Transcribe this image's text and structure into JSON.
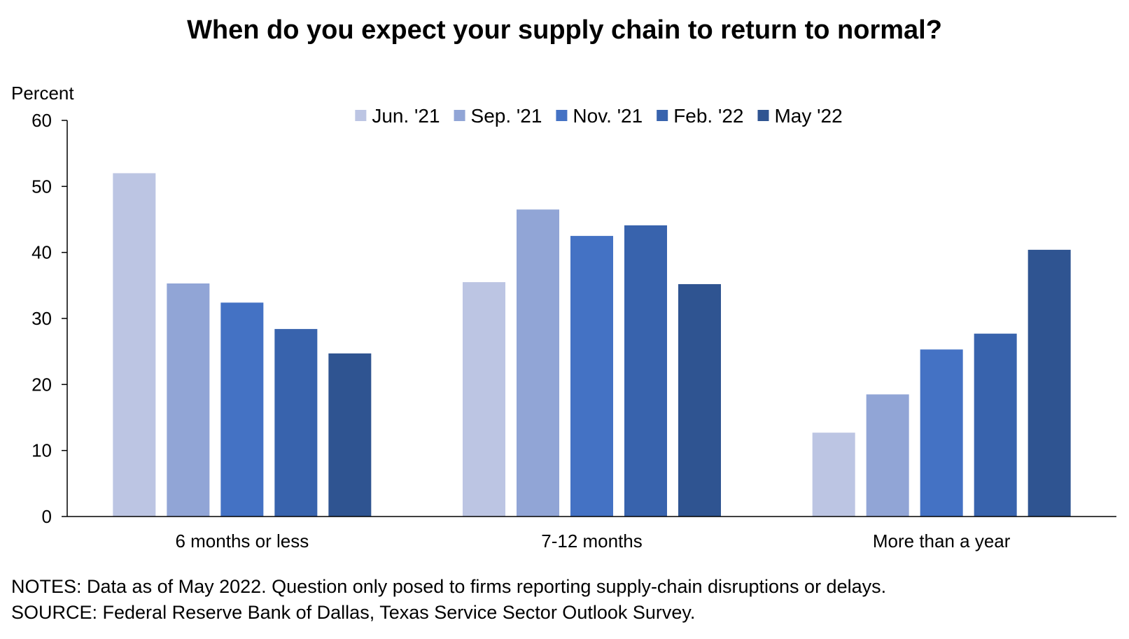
{
  "chart_data": {
    "type": "bar",
    "title": "When do you expect your supply chain to return to normal?",
    "ylabel": "Percent",
    "xlabel": "",
    "ylim": [
      0,
      60
    ],
    "yticks": [
      0,
      10,
      20,
      30,
      40,
      50,
      60
    ],
    "grid": false,
    "legend_position": "top",
    "categories": [
      "6 months or less",
      "7-12 months",
      "More than a year"
    ],
    "series": [
      {
        "name": "Jun. '21",
        "color": "#bcc5e3",
        "values": [
          52.0,
          35.5,
          12.7
        ]
      },
      {
        "name": "Sep. '21",
        "color": "#91a5d6",
        "values": [
          35.3,
          46.5,
          18.5
        ]
      },
      {
        "name": "Nov. '21",
        "color": "#4472c4",
        "values": [
          32.4,
          42.5,
          25.3
        ]
      },
      {
        "name": "Feb. '22",
        "color": "#3863ad",
        "values": [
          28.4,
          44.1,
          27.7
        ]
      },
      {
        "name": "May '22",
        "color": "#2f5491",
        "values": [
          24.7,
          35.2,
          40.4
        ]
      }
    ]
  },
  "notes": {
    "line1": "NOTES: Data as of May 2022. Question only posed to firms reporting supply-chain disruptions or delays.",
    "line2": "SOURCE: Federal Reserve Bank of Dallas, Texas Service Sector Outlook Survey."
  }
}
